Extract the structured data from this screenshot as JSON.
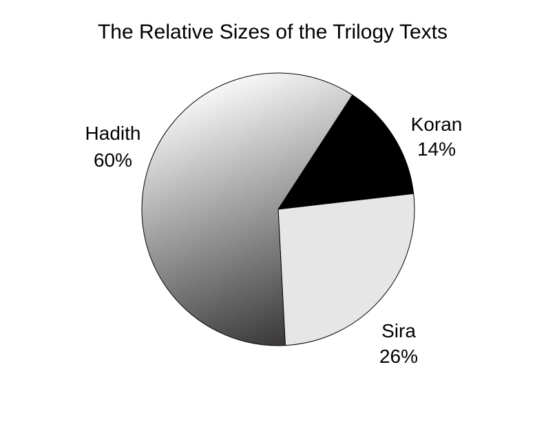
{
  "chart_data": {
    "type": "pie",
    "title": "The Relative Sizes of the Trilogy Texts",
    "slices": [
      {
        "name": "Koran",
        "percent_label": "14%",
        "value": 14,
        "color": "#000000"
      },
      {
        "name": "Sira",
        "percent_label": "26%",
        "value": 26,
        "color": "#e6e6e6"
      },
      {
        "name": "Hadith",
        "percent_label": "60%",
        "value": 60,
        "color": "gradient"
      }
    ],
    "gradient_colors": [
      "#ffffff",
      "#3c3a3b"
    ],
    "edge_color": "#000000"
  }
}
